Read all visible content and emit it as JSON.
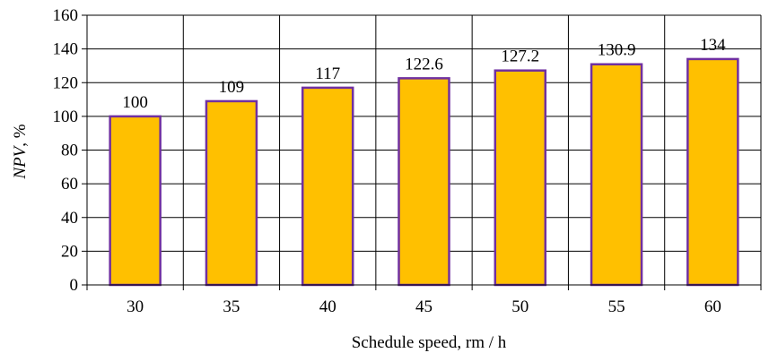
{
  "chart_data": {
    "type": "bar",
    "categories": [
      "30",
      "35",
      "40",
      "45",
      "50",
      "55",
      "60"
    ],
    "values": [
      100,
      109,
      117,
      122.6,
      127.2,
      130.9,
      134
    ],
    "data_labels": [
      "100",
      "109",
      "117",
      "122.6",
      "127.2",
      "130.9",
      "134"
    ],
    "title": "",
    "xlabel": "Schedule speed, rm / h",
    "ylabel_italic": "NPV",
    "ylabel_rest": ", %",
    "ylim": [
      0,
      160
    ],
    "yticks": [
      0,
      20,
      40,
      60,
      80,
      100,
      120,
      140,
      160
    ],
    "ytick_labels": [
      "0",
      "20",
      "40",
      "60",
      "80",
      "100",
      "120",
      "140",
      "160"
    ],
    "grid": true,
    "legend": "none",
    "colors": {
      "bar_fill": "#FFC000",
      "bar_stroke": "#7030A0",
      "grid": "#000000"
    }
  }
}
